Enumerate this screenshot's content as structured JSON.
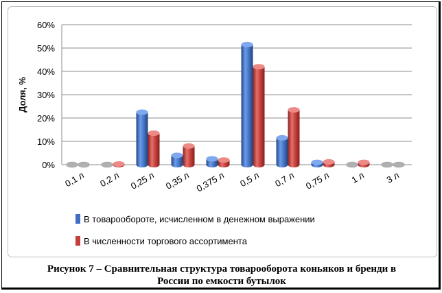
{
  "chart_data": {
    "type": "bar",
    "ylabel": "Доля, %",
    "xlabel": "",
    "categories": [
      "0,1 л",
      "0,2 л",
      "0,25 л",
      "0,35 л",
      "0,375 л",
      "0,5 л",
      "0,7 л",
      "0,75 л",
      "1 л",
      "3 л"
    ],
    "ylim": [
      0,
      60
    ],
    "yticks": [
      "0%",
      "10%",
      "20%",
      "30%",
      "40%",
      "50%",
      "60%"
    ],
    "grid": true,
    "legend_position": "bottom",
    "style": "3d-cylinder",
    "series": [
      {
        "name": "В товарообороте, исчисленном в денежном выражении",
        "color": "#3e6fc2",
        "values": [
          0,
          0,
          22.5,
          4,
          2.5,
          51.5,
          11.5,
          1,
          0,
          0
        ]
      },
      {
        "name": "В численности торгового ассортимента",
        "color": "#c43e3a",
        "values": [
          0,
          0.3,
          13.5,
          8,
          2,
          42,
          23.5,
          1.2,
          1,
          0
        ]
      }
    ]
  },
  "caption": {
    "line1": "Рисунок 7  – Сравнительная структура товарооборота коньяков и бренди в",
    "line2": "России по емкости бутылок"
  }
}
